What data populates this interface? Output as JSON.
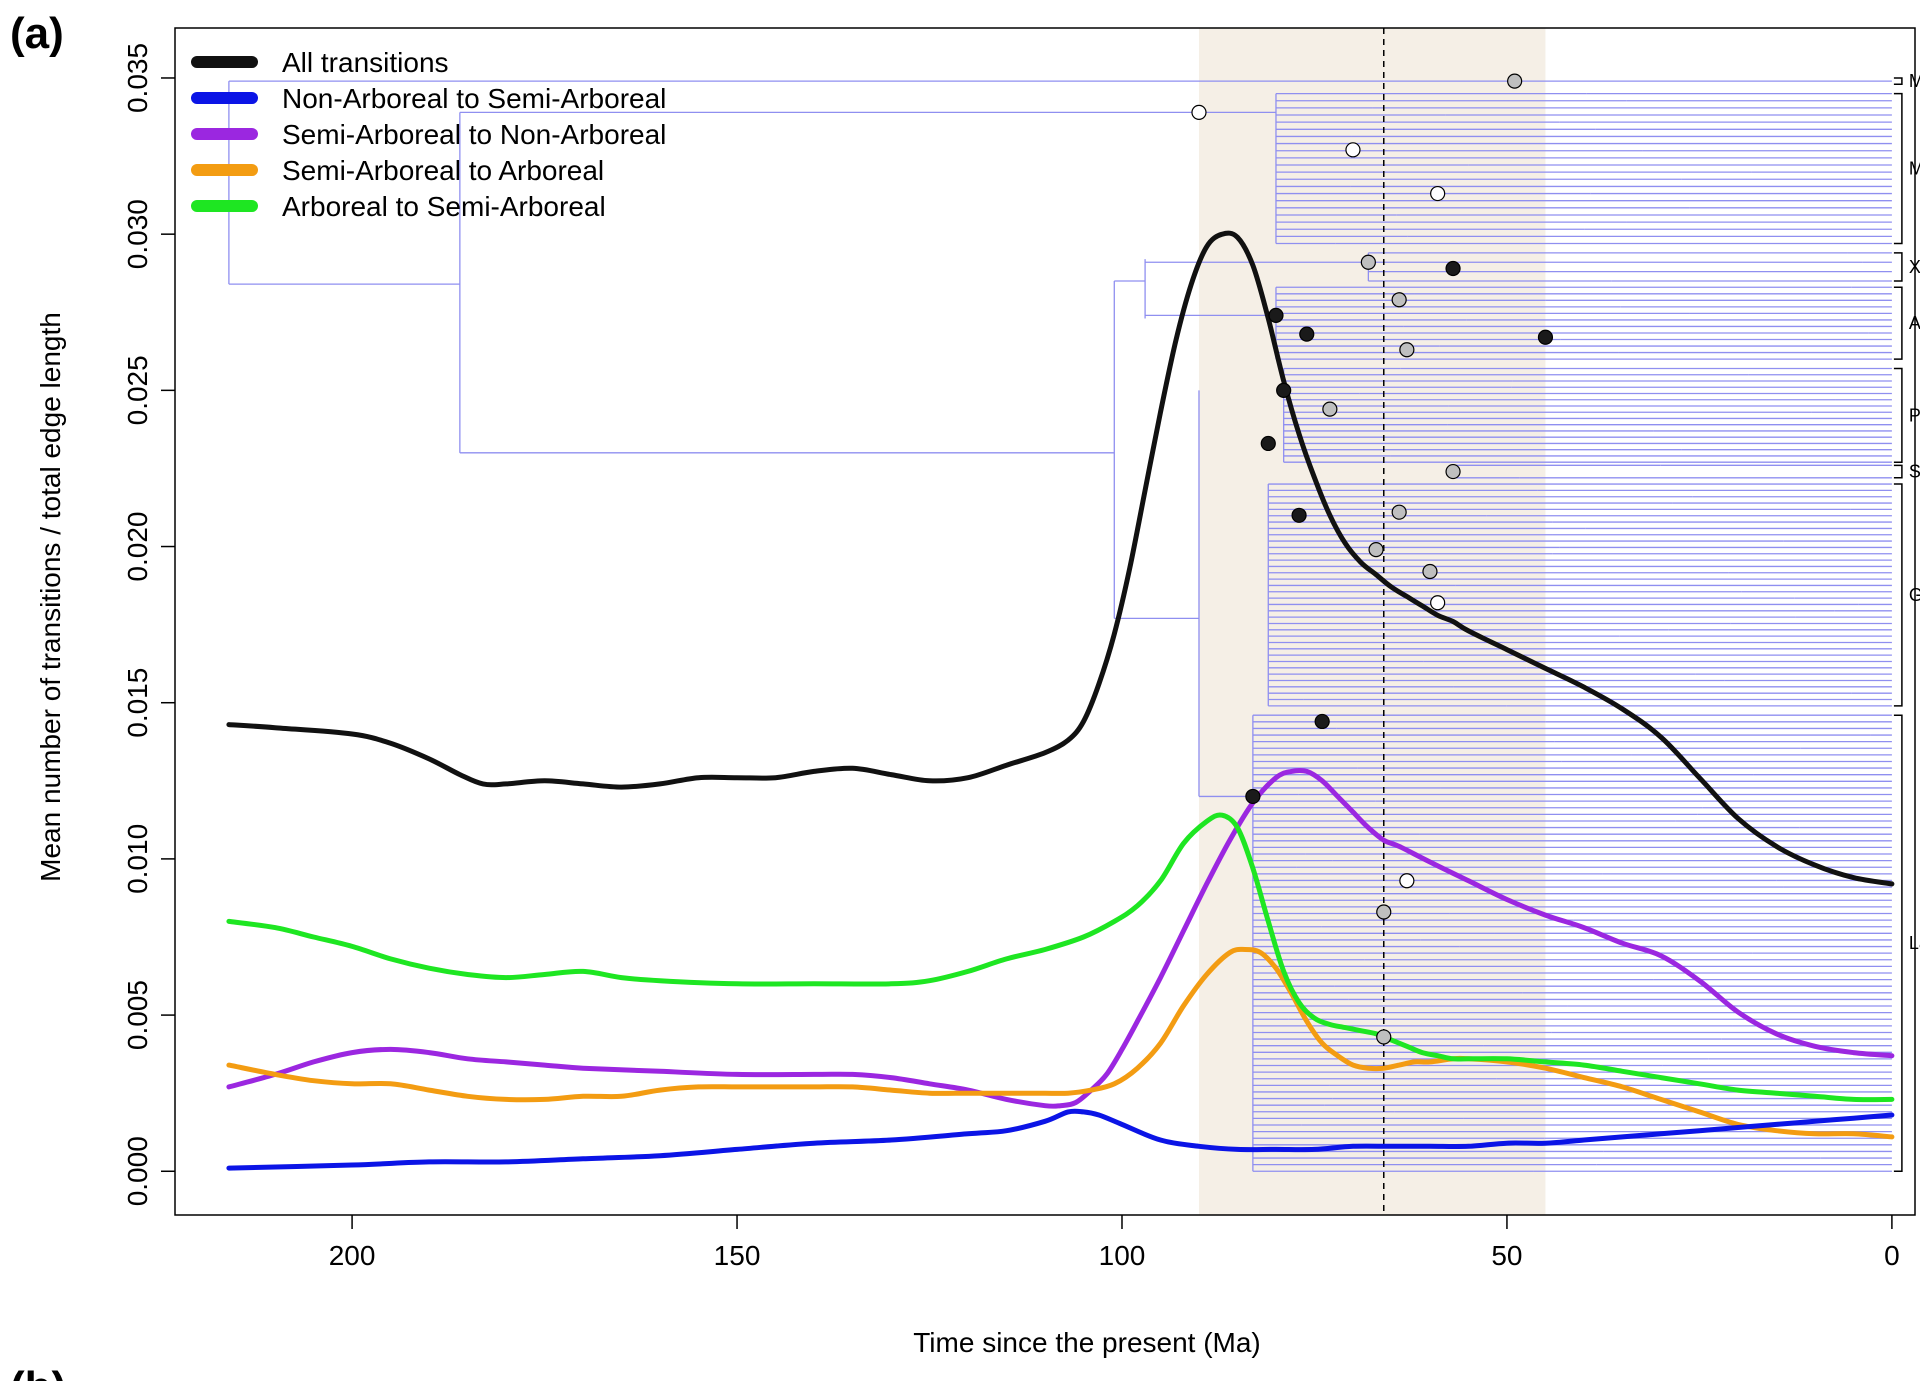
{
  "figure": {
    "panel_label": "(a)",
    "next_panel_label": "(b)"
  },
  "chart_data": {
    "type": "line",
    "xlabel": "Time since the present (Ma)",
    "ylabel": "Mean number of transitions / total edge length",
    "xlim": [
      223,
      -3
    ],
    "ylim": [
      -0.0014,
      0.0366
    ],
    "x_reversed": true,
    "x_ticks": [
      200,
      150,
      100,
      50,
      0
    ],
    "y_ticks": [
      0.0,
      0.005,
      0.01,
      0.015,
      0.02,
      0.025,
      0.03,
      0.035
    ],
    "y_tick_labels": [
      "0.000",
      "0.005",
      "0.010",
      "0.015",
      "0.020",
      "0.025",
      "0.030",
      "0.035"
    ],
    "legend_position": "top-left",
    "shaded_interval": {
      "x": [
        90,
        45
      ],
      "color": "#f5efe6"
    },
    "reference_line": {
      "x": 66,
      "style": "dashed"
    },
    "series": [
      {
        "name": "All transitions",
        "color": "#111111",
        "x": [
          216,
          210,
          200,
          195,
          190,
          186,
          183,
          180,
          175,
          170,
          165,
          160,
          155,
          150,
          145,
          140,
          135,
          130,
          125,
          120,
          115,
          110,
          107,
          105,
          103,
          101,
          99,
          97,
          95,
          93,
          91,
          89,
          87,
          85,
          83,
          81,
          79,
          77,
          75,
          73,
          71,
          69,
          67,
          65,
          63,
          61,
          59,
          57,
          55,
          50,
          45,
          40,
          35,
          30,
          25,
          20,
          15,
          10,
          5,
          0
        ],
        "y": [
          0.0143,
          0.0142,
          0.014,
          0.0137,
          0.0132,
          0.0127,
          0.0124,
          0.0124,
          0.0125,
          0.0124,
          0.0123,
          0.0124,
          0.0126,
          0.0126,
          0.0126,
          0.0128,
          0.0129,
          0.0127,
          0.0125,
          0.0126,
          0.013,
          0.0134,
          0.0138,
          0.0144,
          0.0156,
          0.0172,
          0.0193,
          0.0218,
          0.0243,
          0.0266,
          0.0284,
          0.0296,
          0.03,
          0.0299,
          0.029,
          0.0273,
          0.0253,
          0.0236,
          0.0222,
          0.021,
          0.0201,
          0.0195,
          0.0191,
          0.0187,
          0.0184,
          0.0181,
          0.0178,
          0.0176,
          0.0173,
          0.0167,
          0.0161,
          0.0155,
          0.0148,
          0.0139,
          0.0126,
          0.0113,
          0.0104,
          0.0098,
          0.0094,
          0.0092
        ]
      },
      {
        "name": "Non-Arboreal to Semi-Arboreal",
        "color": "#0b14e6",
        "x": [
          216,
          200,
          190,
          180,
          170,
          160,
          150,
          140,
          130,
          120,
          115,
          110,
          107,
          105,
          103,
          100,
          95,
          90,
          85,
          80,
          75,
          70,
          65,
          60,
          55,
          50,
          45,
          40,
          35,
          30,
          25,
          20,
          15,
          10,
          5,
          0
        ],
        "y": [
          0.0001,
          0.0002,
          0.0003,
          0.0003,
          0.0004,
          0.0005,
          0.0007,
          0.0009,
          0.001,
          0.0012,
          0.0013,
          0.0016,
          0.0019,
          0.0019,
          0.0018,
          0.0015,
          0.001,
          0.0008,
          0.0007,
          0.0007,
          0.0007,
          0.0008,
          0.0008,
          0.0008,
          0.0008,
          0.0009,
          0.0009,
          0.001,
          0.0011,
          0.0012,
          0.0013,
          0.0014,
          0.0015,
          0.0016,
          0.0017,
          0.0018
        ]
      },
      {
        "name": "Semi-Arboreal to Non-Arboreal",
        "color": "#9b27e0",
        "x": [
          216,
          210,
          205,
          200,
          195,
          190,
          185,
          180,
          175,
          170,
          160,
          150,
          140,
          135,
          130,
          125,
          120,
          115,
          110,
          108,
          106,
          104,
          102,
          100,
          98,
          95,
          92,
          89,
          86,
          83,
          80,
          78,
          76,
          74,
          72,
          70,
          68,
          66,
          64,
          60,
          55,
          50,
          45,
          40,
          35,
          30,
          25,
          20,
          15,
          10,
          5,
          0
        ],
        "y": [
          0.0027,
          0.0031,
          0.0035,
          0.0038,
          0.0039,
          0.0038,
          0.0036,
          0.0035,
          0.0034,
          0.0033,
          0.0032,
          0.0031,
          0.0031,
          0.0031,
          0.003,
          0.0028,
          0.0026,
          0.0023,
          0.0021,
          0.0021,
          0.0022,
          0.0026,
          0.0031,
          0.0039,
          0.0048,
          0.0062,
          0.0077,
          0.0092,
          0.0106,
          0.0118,
          0.0126,
          0.0128,
          0.0128,
          0.0125,
          0.012,
          0.0115,
          0.011,
          0.0106,
          0.0104,
          0.0099,
          0.0093,
          0.0087,
          0.0082,
          0.0078,
          0.0073,
          0.0069,
          0.0061,
          0.0051,
          0.0044,
          0.004,
          0.0038,
          0.0037
        ]
      },
      {
        "name": "Semi-Arboreal to Arboreal",
        "color": "#f39c12",
        "x": [
          216,
          210,
          205,
          200,
          195,
          190,
          185,
          180,
          175,
          170,
          165,
          160,
          155,
          150,
          145,
          140,
          135,
          130,
          125,
          120,
          115,
          110,
          107,
          104,
          101,
          98,
          95,
          92,
          89,
          86,
          84,
          82,
          80,
          78,
          76,
          74,
          72,
          70,
          68,
          66,
          64,
          62,
          60,
          57,
          55,
          50,
          45,
          40,
          35,
          30,
          25,
          20,
          15,
          10,
          5,
          0
        ],
        "y": [
          0.0034,
          0.0031,
          0.0029,
          0.0028,
          0.0028,
          0.0026,
          0.0024,
          0.0023,
          0.0023,
          0.0024,
          0.0024,
          0.0026,
          0.0027,
          0.0027,
          0.0027,
          0.0027,
          0.0027,
          0.0026,
          0.0025,
          0.0025,
          0.0025,
          0.0025,
          0.0025,
          0.0026,
          0.0028,
          0.0033,
          0.0041,
          0.0053,
          0.0063,
          0.007,
          0.0071,
          0.007,
          0.0065,
          0.0057,
          0.0048,
          0.0041,
          0.0037,
          0.0034,
          0.0033,
          0.0033,
          0.0034,
          0.0035,
          0.0035,
          0.0036,
          0.0036,
          0.0035,
          0.0033,
          0.003,
          0.0027,
          0.0023,
          0.0019,
          0.0015,
          0.0013,
          0.0012,
          0.0012,
          0.0011
        ]
      },
      {
        "name": "Arboreal to Semi-Arboreal",
        "color": "#1ee622",
        "x": [
          216,
          210,
          205,
          200,
          195,
          190,
          185,
          180,
          175,
          170,
          165,
          160,
          150,
          140,
          130,
          125,
          120,
          115,
          110,
          105,
          101,
          98,
          95,
          92,
          89,
          87,
          85,
          83,
          81,
          79,
          77,
          75,
          73,
          71,
          69,
          67,
          65,
          63,
          61,
          59,
          57,
          55,
          50,
          45,
          40,
          35,
          30,
          25,
          20,
          15,
          10,
          5,
          0
        ],
        "y": [
          0.008,
          0.0078,
          0.0075,
          0.0072,
          0.0068,
          0.0065,
          0.0063,
          0.0062,
          0.0063,
          0.0064,
          0.0062,
          0.0061,
          0.006,
          0.006,
          0.006,
          0.0061,
          0.0064,
          0.0068,
          0.0071,
          0.0075,
          0.008,
          0.0085,
          0.0093,
          0.0105,
          0.0112,
          0.0114,
          0.011,
          0.0097,
          0.008,
          0.0064,
          0.0054,
          0.0049,
          0.0047,
          0.0046,
          0.0045,
          0.0044,
          0.0042,
          0.004,
          0.0038,
          0.0037,
          0.0036,
          0.0036,
          0.0036,
          0.0035,
          0.0034,
          0.0032,
          0.003,
          0.0028,
          0.0026,
          0.0025,
          0.0024,
          0.0023,
          0.0023
        ]
      }
    ],
    "node_markers": [
      {
        "x": 49,
        "y": 0.0349,
        "fill": "gray"
      },
      {
        "x": 90,
        "y": 0.0339,
        "fill": "white"
      },
      {
        "x": 70,
        "y": 0.0327,
        "fill": "white"
      },
      {
        "x": 59,
        "y": 0.0313,
        "fill": "white"
      },
      {
        "x": 68,
        "y": 0.0291,
        "fill": "gray"
      },
      {
        "x": 57,
        "y": 0.0289,
        "fill": "black"
      },
      {
        "x": 64,
        "y": 0.0279,
        "fill": "gray"
      },
      {
        "x": 80,
        "y": 0.0274,
        "fill": "black"
      },
      {
        "x": 76,
        "y": 0.0268,
        "fill": "black"
      },
      {
        "x": 45,
        "y": 0.0267,
        "fill": "black"
      },
      {
        "x": 63,
        "y": 0.0263,
        "fill": "gray"
      },
      {
        "x": 79,
        "y": 0.025,
        "fill": "black"
      },
      {
        "x": 73,
        "y": 0.0244,
        "fill": "gray"
      },
      {
        "x": 81,
        "y": 0.0233,
        "fill": "black"
      },
      {
        "x": 57,
        "y": 0.0224,
        "fill": "gray"
      },
      {
        "x": 64,
        "y": 0.0211,
        "fill": "gray"
      },
      {
        "x": 77,
        "y": 0.021,
        "fill": "black"
      },
      {
        "x": 67,
        "y": 0.0199,
        "fill": "gray"
      },
      {
        "x": 60,
        "y": 0.0192,
        "fill": "gray"
      },
      {
        "x": 59,
        "y": 0.0182,
        "fill": "white"
      },
      {
        "x": 74,
        "y": 0.0144,
        "fill": "black"
      },
      {
        "x": 83,
        "y": 0.012,
        "fill": "black"
      },
      {
        "x": 63,
        "y": 0.0093,
        "fill": "white"
      },
      {
        "x": 66,
        "y": 0.0083,
        "fill": "gray"
      },
      {
        "x": 66,
        "y": 0.0043,
        "fill": "gray"
      }
    ],
    "clades": [
      {
        "label": "Mo.",
        "y_top": 0.035,
        "y_bottom": 0.0348
      },
      {
        "label": "Ma.",
        "y_top": 0.0345,
        "y_bottom": 0.0297
      },
      {
        "label": "Xe.",
        "y_top": 0.0294,
        "y_bottom": 0.0285
      },
      {
        "label": "Af.",
        "y_top": 0.0283,
        "y_bottom": 0.026
      },
      {
        "label": "Pr.",
        "y_top": 0.0257,
        "y_bottom": 0.0227
      },
      {
        "label": "Sc.",
        "y_top": 0.0226,
        "y_bottom": 0.0222
      },
      {
        "label": "Gl.",
        "y_top": 0.022,
        "y_bottom": 0.0149
      },
      {
        "label": "La.",
        "y_top": 0.0146,
        "y_bottom": 0.0
      }
    ]
  }
}
